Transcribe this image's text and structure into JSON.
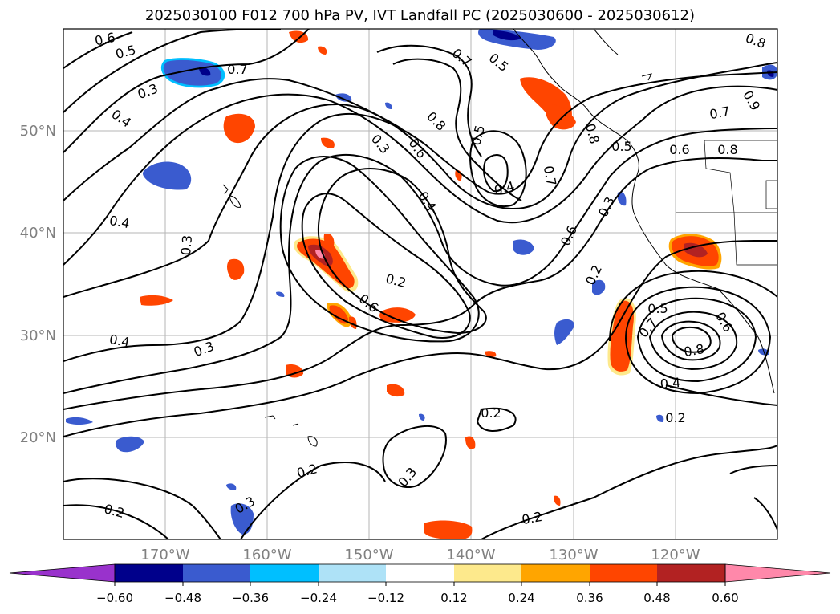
{
  "title": "2025030100 F012 700 hPa PV, IVT Landfall PC (2025030600 - 2025030612)",
  "map": {
    "lon_range": [
      -180,
      -110
    ],
    "lat_range": [
      10,
      60
    ],
    "lon_ticks": [
      "170°W",
      "160°W",
      "150°W",
      "140°W",
      "130°W",
      "120°W"
    ],
    "lat_ticks": [
      "50°N",
      "40°N",
      "30°N",
      "20°N"
    ]
  },
  "contour_labels": [
    "0.6",
    "0.5",
    "0.3",
    "0.4",
    "0.7",
    "0.4",
    "0.3",
    "0.4",
    "0.3",
    "0.2",
    "0.7",
    "0.5",
    "0.8",
    "0.6",
    "0.3",
    "0.4",
    "0.5",
    "0.4",
    "0.7",
    "0.8",
    "0.8",
    "0.9",
    "0.6",
    "0.8",
    "0.5",
    "0.7",
    "0.6",
    "0.3",
    "0.2",
    "0.6",
    "0.5",
    "0.7",
    "0.6",
    "0.8",
    "0.4",
    "0.2",
    "0.2",
    "0.3",
    "0.2",
    "0.3",
    "0.2",
    "0.2"
  ],
  "colorbar": {
    "ticks": [
      "−0.60",
      "−0.48",
      "−0.36",
      "−0.24",
      "−0.12",
      "0.12",
      "0.24",
      "0.36",
      "0.48",
      "0.60"
    ],
    "colors": {
      "neg_extend": "#9932cc",
      "n060": "#00008b",
      "n048": "#3a5bcf",
      "n036": "#00bfff",
      "n024": "#aee2f7",
      "neutral": "#ffffff",
      "p012": "#fde98c",
      "p024": "#ffa500",
      "p036": "#ff4500",
      "p048": "#b22222",
      "pos_extend": "#ff88aa"
    }
  }
}
